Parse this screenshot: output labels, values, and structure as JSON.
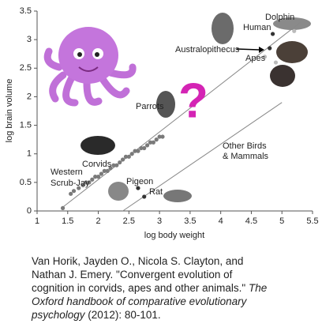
{
  "chart_data": {
    "type": "scatter",
    "xlabel": "log body weight",
    "ylabel": "log brain volume",
    "xlim": [
      1,
      5.5
    ],
    "ylim": [
      0,
      3.5
    ],
    "xticks": [
      1,
      1.5,
      2,
      2.5,
      3,
      3.5,
      4,
      4.5,
      5,
      5.5
    ],
    "yticks": [
      0,
      0.5,
      1,
      1.5,
      2,
      2.5,
      3,
      3.5
    ],
    "series": [
      {
        "color": "#7a7a7a",
        "x": [
          1.42,
          1.55,
          1.6,
          1.68,
          1.75,
          1.8,
          1.85,
          1.9,
          1.95,
          2.0,
          2.05,
          2.1,
          2.15,
          2.2,
          2.25,
          2.3,
          2.35,
          2.4,
          2.45,
          2.5,
          2.55,
          2.6,
          2.65,
          2.7,
          2.75,
          2.8,
          2.85,
          2.9,
          2.95,
          3.0,
          3.05
        ],
        "y": [
          0.05,
          0.3,
          0.35,
          0.4,
          0.45,
          0.5,
          0.5,
          0.55,
          0.6,
          0.6,
          0.65,
          0.7,
          0.7,
          0.75,
          0.8,
          0.8,
          0.85,
          0.9,
          0.95,
          0.95,
          1.0,
          1.05,
          1.05,
          1.1,
          1.1,
          1.15,
          1.2,
          1.2,
          1.25,
          1.3,
          1.3
        ]
      },
      {
        "color": "#bbbbbb",
        "x": [
          4.72,
          4.9,
          5.2
        ],
        "y": [
          2.7,
          2.6,
          3.15
        ]
      },
      {
        "color": "#333333",
        "x": [
          2.65,
          2.75,
          4.8,
          4.85
        ],
        "y": [
          0.4,
          0.25,
          2.85,
          3.1
        ]
      }
    ],
    "trend_lines": [
      {
        "color": "#888888",
        "x": [
          1.4,
          5.3
        ],
        "y": [
          0.05,
          3.3
        ]
      },
      {
        "color": "#888888",
        "x": [
          2.4,
          5.0
        ],
        "y": [
          0,
          1.9
        ]
      }
    ],
    "annotations": [
      "Dolphin",
      "Human",
      "Australopithecus",
      "Apes",
      "Parrots",
      "Corvids",
      "Western",
      "Scrub-Jay",
      "Pigeon",
      "Rat",
      "Other Birds",
      "& Mammals",
      "?"
    ]
  },
  "caption": {
    "lines": [
      [
        {
          "text": "Van Horik, Jayden O., Nicola S. Clayton, and",
          "italic": false
        }
      ],
      [
        {
          "text": "Nathan J. Emery. \"Convergent evolution of",
          "italic": false
        }
      ],
      [
        {
          "text": "cognition in corvids, apes and other animals.\" ",
          "italic": false
        },
        {
          "text": "The",
          "italic": true
        }
      ],
      [
        {
          "text": "Oxford handbook of comparative evolutionary",
          "italic": true
        }
      ],
      [
        {
          "text": "psychology",
          "italic": true
        },
        {
          "text": " (2012): 80-101.",
          "italic": false
        }
      ]
    ]
  }
}
